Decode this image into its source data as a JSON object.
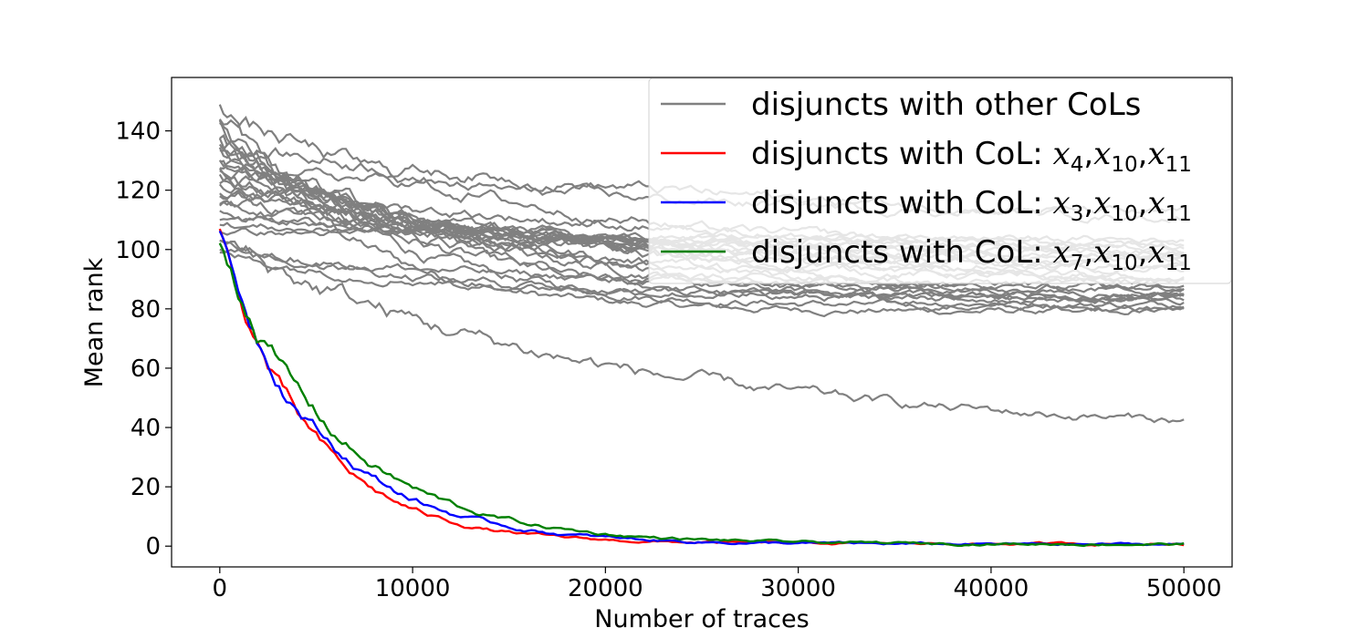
{
  "chart_data": {
    "type": "line",
    "title": "",
    "xlabel": "Number of traces",
    "ylabel": "Mean rank",
    "xlim": [
      -2500,
      52500
    ],
    "ylim": [
      -7,
      158
    ],
    "xticks": [
      0,
      10000,
      20000,
      30000,
      40000,
      50000
    ],
    "yticks": [
      0,
      20,
      40,
      60,
      80,
      100,
      120,
      140
    ],
    "grid": false,
    "legend_position": "top-right",
    "legend": [
      {
        "text": "disjuncts with other CoLs",
        "color": "#808080",
        "math": []
      },
      {
        "text": "disjuncts with CoL: ",
        "color": "#ff0000",
        "math": [
          [
            "x",
            "4"
          ],
          [
            "x",
            "10"
          ],
          [
            "x",
            "11"
          ]
        ]
      },
      {
        "text": "disjuncts with CoL: ",
        "color": "#0000ff",
        "math": [
          [
            "x",
            "3"
          ],
          [
            "x",
            "10"
          ],
          [
            "x",
            "11"
          ]
        ]
      },
      {
        "text": "disjuncts with CoL: ",
        "color": "#008000",
        "math": [
          [
            "x",
            "7"
          ],
          [
            "x",
            "10"
          ],
          [
            "x",
            "11"
          ]
        ]
      }
    ],
    "series": [
      {
        "group": "disjuncts with other CoLs",
        "color": "#808080",
        "start": 148,
        "end": 79,
        "k": 0.00015
      },
      {
        "group": "disjuncts with other CoLs",
        "color": "#808080",
        "start": 145,
        "end": 80,
        "k": 0.00012
      },
      {
        "group": "disjuncts with other CoLs",
        "color": "#808080",
        "start": 142,
        "end": 81,
        "k": 0.0001
      },
      {
        "group": "disjuncts with other CoLs",
        "color": "#808080",
        "start": 140,
        "end": 82,
        "k": 9e-05
      },
      {
        "group": "disjuncts with other CoLs",
        "color": "#808080",
        "start": 138,
        "end": 83,
        "k": 8e-05
      },
      {
        "group": "disjuncts with other CoLs",
        "color": "#808080",
        "start": 136,
        "end": 84,
        "k": 8e-05
      },
      {
        "group": "disjuncts with other CoLs",
        "color": "#808080",
        "start": 134,
        "end": 85,
        "k": 7e-05
      },
      {
        "group": "disjuncts with other CoLs",
        "color": "#808080",
        "start": 132,
        "end": 86,
        "k": 7e-05
      },
      {
        "group": "disjuncts with other CoLs",
        "color": "#808080",
        "start": 130,
        "end": 87,
        "k": 6e-05
      },
      {
        "group": "disjuncts with other CoLs",
        "color": "#808080",
        "start": 128,
        "end": 88,
        "k": 6e-05
      },
      {
        "group": "disjuncts with other CoLs",
        "color": "#808080",
        "start": 126,
        "end": 89,
        "k": 6e-05
      },
      {
        "group": "disjuncts with other CoLs",
        "color": "#808080",
        "start": 124,
        "end": 90,
        "k": 5e-05
      },
      {
        "group": "disjuncts with other CoLs",
        "color": "#808080",
        "start": 122,
        "end": 91,
        "k": 5e-05
      },
      {
        "group": "disjuncts with other CoLs",
        "color": "#808080",
        "start": 120,
        "end": 92,
        "k": 5e-05
      },
      {
        "group": "disjuncts with other CoLs",
        "color": "#808080",
        "start": 118,
        "end": 93,
        "k": 4e-05
      },
      {
        "group": "disjuncts with other CoLs",
        "color": "#808080",
        "start": 116,
        "end": 94,
        "k": 4e-05
      },
      {
        "group": "disjuncts with other CoLs",
        "color": "#808080",
        "start": 114,
        "end": 95,
        "k": 4e-05
      },
      {
        "group": "disjuncts with other CoLs",
        "color": "#808080",
        "start": 112,
        "end": 97,
        "k": 4e-05
      },
      {
        "group": "disjuncts with other CoLs",
        "color": "#808080",
        "start": 110,
        "end": 99,
        "k": 4e-05
      },
      {
        "group": "disjuncts with other CoLs",
        "color": "#808080",
        "start": 108,
        "end": 101,
        "k": 4e-05
      },
      {
        "group": "disjuncts with other CoLs",
        "color": "#808080",
        "start": 106,
        "end": 103,
        "k": 4e-05
      },
      {
        "group": "disjuncts with other CoLs",
        "color": "#808080",
        "start": 135,
        "end": 105,
        "k": 3e-05
      },
      {
        "group": "disjuncts with other CoLs",
        "color": "#808080",
        "start": 128,
        "end": 106,
        "k": 3e-05
      },
      {
        "group": "disjuncts with other CoLs",
        "color": "#808080",
        "start": 122,
        "end": 98,
        "k": 4e-05
      },
      {
        "group": "disjuncts with other CoLs",
        "color": "#808080",
        "start": 100,
        "end": 86,
        "k": 6e-05
      },
      {
        "group": "disjuncts with other CoLs",
        "color": "#808080",
        "start": 98,
        "end": 84,
        "k": 8e-05
      },
      {
        "group": "disjuncts with other CoLs",
        "color": "#808080",
        "start": 104,
        "end": 83,
        "k": 9e-05
      },
      {
        "group": "disjuncts with other CoLs",
        "color": "#808080",
        "start": 146,
        "end": 96,
        "k": 6e-05
      },
      {
        "group": "disjuncts with other CoLs",
        "color": "#808080",
        "start": 102,
        "end": 37,
        "k": 5e-05
      },
      {
        "group": "disjuncts with CoL: x4,x10,x11",
        "color": "#ff0000",
        "start": 105,
        "end": 0.8,
        "k": 0.00022
      },
      {
        "group": "disjuncts with CoL: x3,x10,x11",
        "color": "#0000ff",
        "start": 103,
        "end": 0.6,
        "k": 0.00019
      },
      {
        "group": "disjuncts with CoL: x7,x10,x11",
        "color": "#008000",
        "start": 104,
        "end": 0.7,
        "k": 0.00017
      }
    ]
  }
}
